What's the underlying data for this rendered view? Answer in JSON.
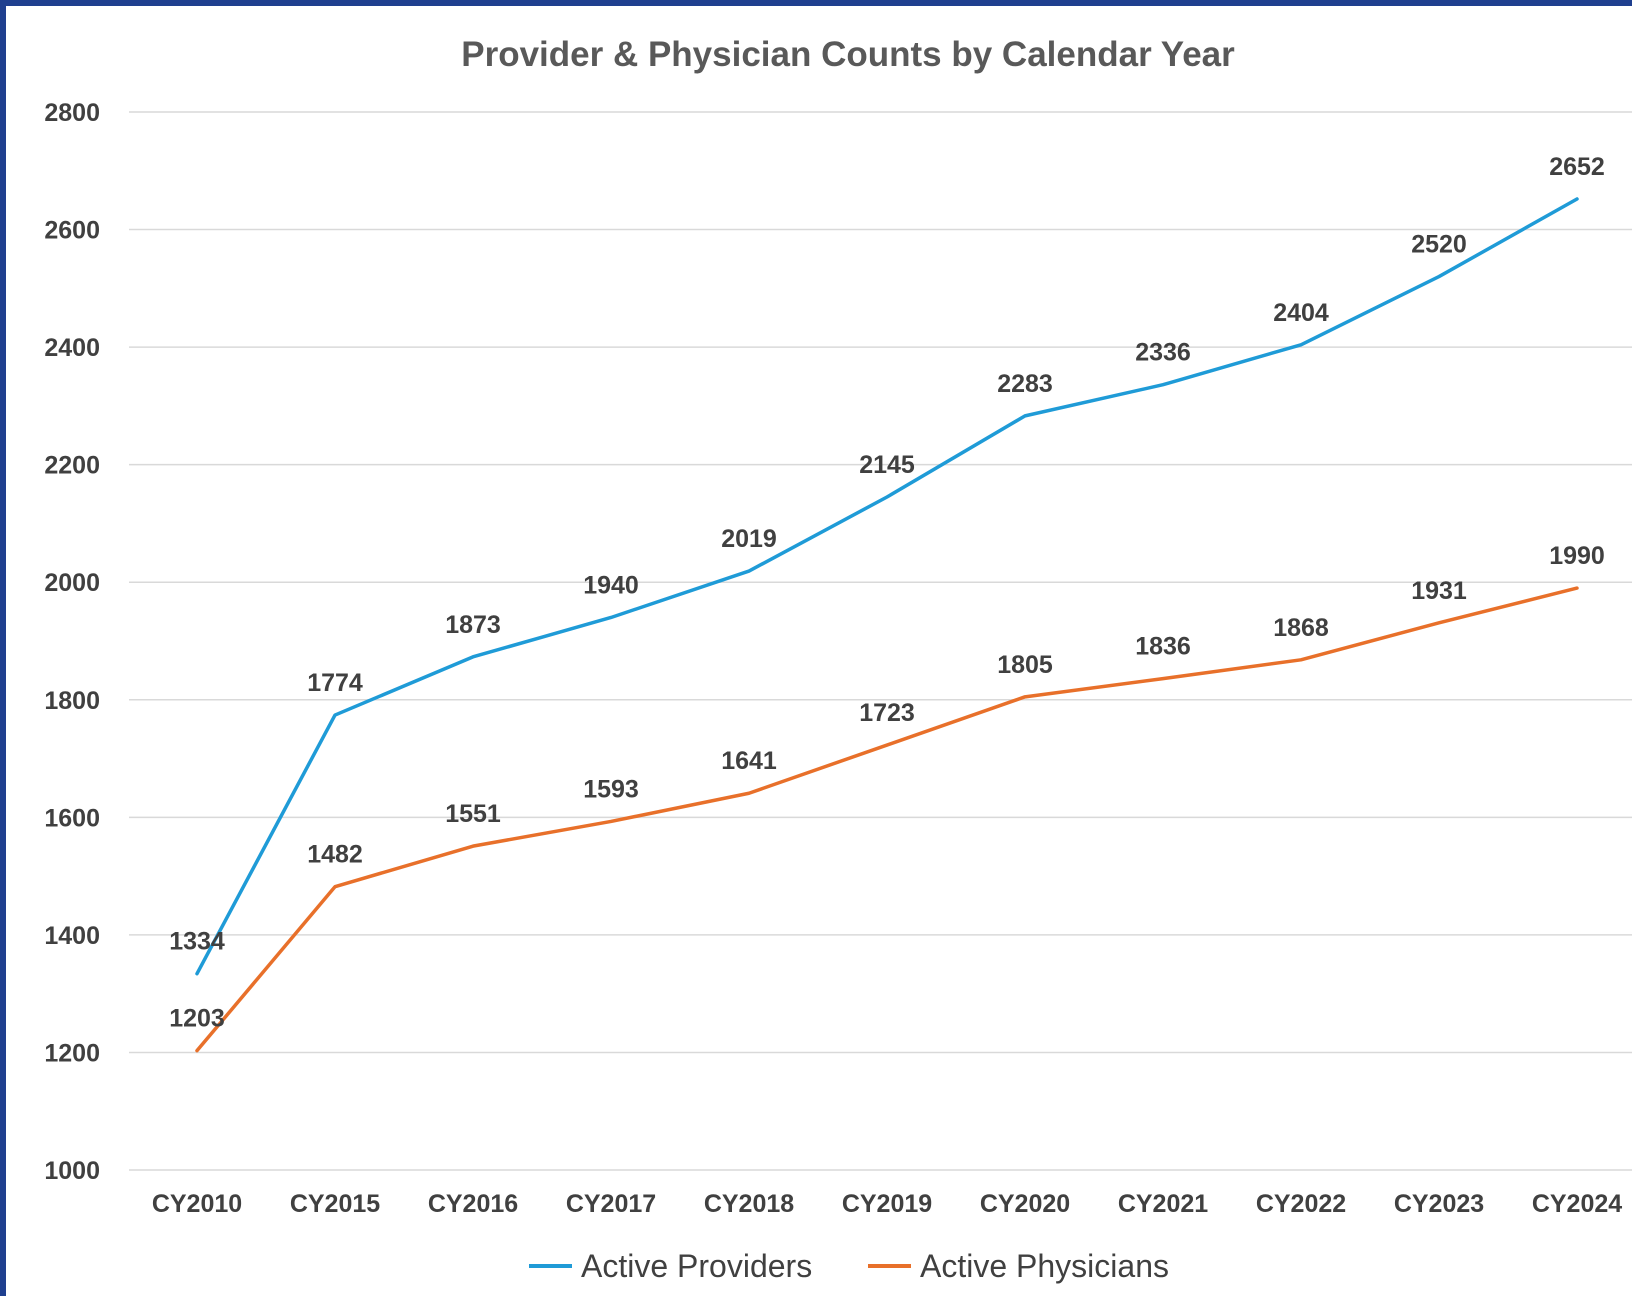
{
  "chart_data": {
    "type": "line",
    "title": "Provider & Physician Counts by Calendar Year",
    "xlabel": "",
    "ylabel": "",
    "categories": [
      "CY2010",
      "CY2015",
      "CY2016",
      "CY2017",
      "CY2018",
      "CY2019",
      "CY2020",
      "CY2021",
      "CY2022",
      "CY2023",
      "CY2024"
    ],
    "ylim": [
      1000,
      2800
    ],
    "yticks": [
      1000,
      1200,
      1400,
      1600,
      1800,
      2000,
      2200,
      2400,
      2600,
      2800
    ],
    "grid": true,
    "legend_position": "bottom",
    "series": [
      {
        "name": "Active Providers",
        "color": "#1f9bd7",
        "values": [
          1334,
          1774,
          1873,
          1940,
          2019,
          2145,
          2283,
          2336,
          2404,
          2520,
          2652
        ]
      },
      {
        "name": "Active Physicians",
        "color": "#e8702a",
        "values": [
          1203,
          1482,
          1551,
          1593,
          1641,
          1723,
          1805,
          1836,
          1868,
          1931,
          1990
        ]
      }
    ]
  }
}
